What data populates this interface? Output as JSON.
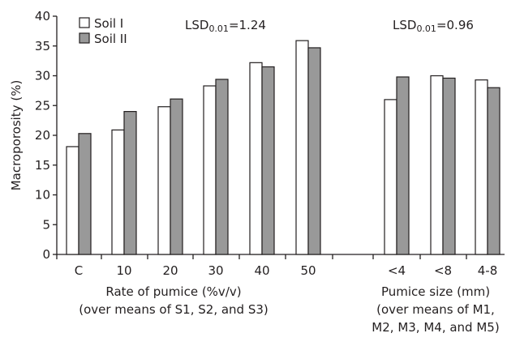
{
  "chart_data": {
    "type": "bar",
    "ylabel": "Macroporosity (%)",
    "ylim": [
      0,
      40
    ],
    "yticks": [
      0,
      5,
      10,
      15,
      20,
      25,
      30,
      35,
      40
    ],
    "grid": false,
    "legend_position": "top-left",
    "series": [
      {
        "name": "Soil I",
        "color": "#ffffff"
      },
      {
        "name": "Soil II",
        "color": "#999999"
      }
    ],
    "groups": [
      {
        "xlabel_lines": [
          "Rate of pumice (%v/v)",
          "(over means of  S1, S2, and S3)"
        ],
        "annotation": {
          "prefix": "LSD",
          "subscript": "0.01",
          "suffix": "=1.24"
        },
        "categories": [
          "C",
          "10",
          "20",
          "30",
          "40",
          "50"
        ],
        "values": [
          [
            18.1,
            20.3
          ],
          [
            20.9,
            24.0
          ],
          [
            24.8,
            26.1
          ],
          [
            28.3,
            29.4
          ],
          [
            32.2,
            31.5
          ],
          [
            35.9,
            34.7
          ]
        ]
      },
      {
        "xlabel_lines": [
          "Pumice size (mm)",
          "(over means of M1,",
          "M2, M3, M4, and M5)"
        ],
        "annotation": {
          "prefix": "LSD",
          "subscript": "0.01",
          "suffix": "=0.96"
        },
        "categories": [
          "<4",
          "<8",
          "4-8"
        ],
        "values": [
          [
            26.0,
            29.8
          ],
          [
            30.0,
            29.6
          ],
          [
            29.3,
            28.0
          ]
        ]
      }
    ]
  }
}
